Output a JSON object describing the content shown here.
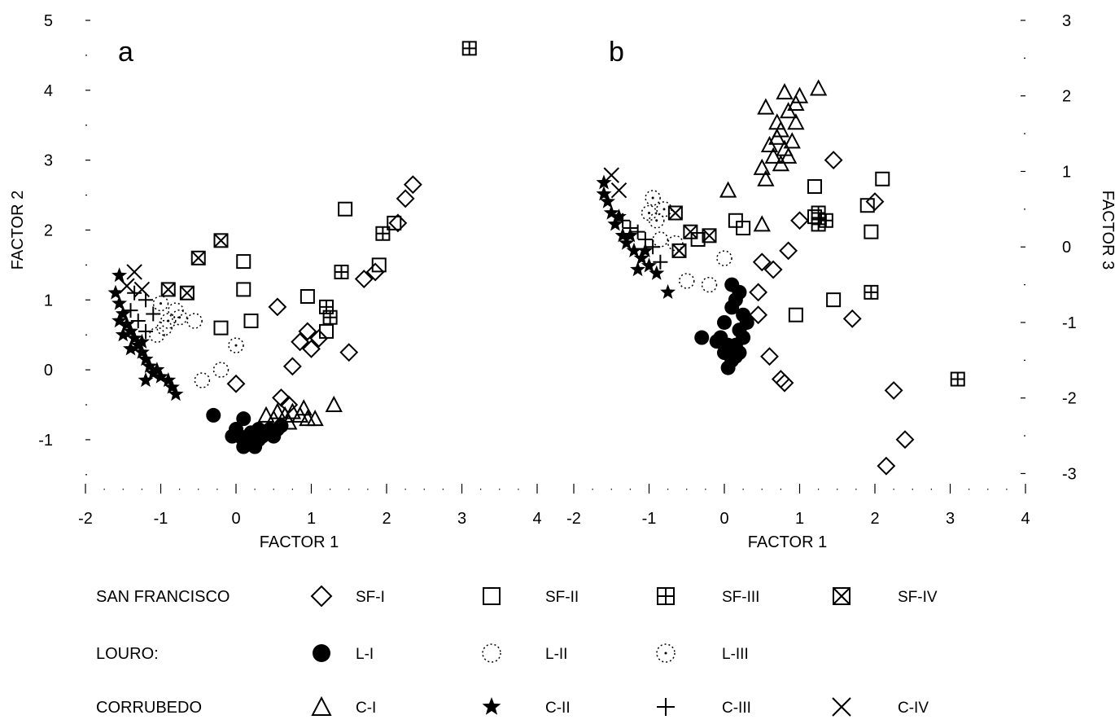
{
  "chart_data": [
    {
      "panel": "a",
      "type": "scatter",
      "xlabel": "FACTOR 1",
      "ylabel": "FACTOR 2",
      "xlim": [
        -2,
        4
      ],
      "ylim": [
        -1.7,
        5
      ],
      "xticks": [
        -2,
        -1,
        0,
        1,
        2,
        3,
        4
      ],
      "yticks": [
        -1,
        0,
        1,
        2,
        3,
        4,
        5
      ],
      "series": [
        {
          "name": "SF-I",
          "marker": "diamond",
          "points": [
            [
              0.55,
              0.9
            ],
            [
              0.85,
              0.4
            ],
            [
              0.95,
              0.55
            ],
            [
              1.0,
              0.3
            ],
            [
              1.1,
              0.45
            ],
            [
              1.5,
              0.25
            ],
            [
              1.7,
              1.3
            ],
            [
              1.85,
              1.4
            ],
            [
              2.15,
              2.1
            ],
            [
              2.25,
              2.45
            ],
            [
              2.35,
              2.65
            ],
            [
              0.6,
              -0.4
            ],
            [
              0.7,
              -0.5
            ],
            [
              0.0,
              -0.2
            ],
            [
              0.75,
              0.05
            ]
          ]
        },
        {
          "name": "SF-II",
          "marker": "square",
          "points": [
            [
              1.45,
              2.3
            ],
            [
              0.1,
              1.55
            ],
            [
              0.1,
              1.15
            ],
            [
              0.95,
              1.05
            ],
            [
              0.2,
              0.7
            ],
            [
              -0.2,
              0.6
            ],
            [
              1.2,
              0.55
            ],
            [
              1.9,
              1.5
            ],
            [
              2.1,
              2.1
            ]
          ]
        },
        {
          "name": "SF-III",
          "marker": "square-plus",
          "points": [
            [
              3.1,
              4.6
            ],
            [
              1.4,
              1.4
            ],
            [
              1.2,
              0.9
            ],
            [
              1.25,
              0.75
            ],
            [
              1.95,
              1.95
            ]
          ]
        },
        {
          "name": "SF-IV",
          "marker": "square-x",
          "points": [
            [
              -0.2,
              1.85
            ],
            [
              -0.5,
              1.6
            ],
            [
              -0.65,
              1.1
            ],
            [
              -0.9,
              1.15
            ]
          ]
        },
        {
          "name": "L-I",
          "marker": "filled-circle",
          "points": [
            [
              -0.3,
              -0.65
            ],
            [
              0.1,
              -0.7
            ],
            [
              0.0,
              -0.85
            ],
            [
              0.05,
              -0.95
            ],
            [
              0.15,
              -1.0
            ],
            [
              0.2,
              -1.05
            ],
            [
              0.25,
              -1.1
            ],
            [
              0.3,
              -1.0
            ],
            [
              0.35,
              -0.95
            ],
            [
              0.4,
              -0.9
            ],
            [
              0.45,
              -0.85
            ],
            [
              0.55,
              -0.85
            ],
            [
              0.6,
              -0.8
            ],
            [
              0.1,
              -1.1
            ],
            [
              0.2,
              -0.9
            ],
            [
              0.3,
              -0.85
            ],
            [
              0.5,
              -0.95
            ],
            [
              -0.05,
              -0.95
            ]
          ]
        },
        {
          "name": "L-II",
          "marker": "dotted-circle",
          "points": [
            [
              -0.55,
              0.7
            ],
            [
              -0.8,
              0.85
            ],
            [
              -0.95,
              0.6
            ],
            [
              -1.05,
              0.5
            ],
            [
              -0.45,
              -0.15
            ],
            [
              -0.2,
              0.0
            ]
          ]
        },
        {
          "name": "L-III",
          "marker": "dotted-circle-dot",
          "points": [
            [
              0.0,
              0.35
            ],
            [
              -0.75,
              0.75
            ],
            [
              -0.9,
              0.7
            ],
            [
              -1.0,
              0.95
            ]
          ]
        },
        {
          "name": "C-I",
          "marker": "triangle",
          "points": [
            [
              1.3,
              -0.5
            ],
            [
              0.55,
              -0.6
            ],
            [
              0.65,
              -0.65
            ],
            [
              0.75,
              -0.6
            ],
            [
              0.85,
              -0.65
            ],
            [
              0.95,
              -0.7
            ],
            [
              1.05,
              -0.7
            ],
            [
              0.7,
              -0.75
            ],
            [
              0.5,
              -0.7
            ],
            [
              0.4,
              -0.65
            ],
            [
              0.9,
              -0.55
            ]
          ]
        },
        {
          "name": "C-II",
          "marker": "star",
          "points": [
            [
              -1.55,
              1.35
            ],
            [
              -1.6,
              1.1
            ],
            [
              -1.55,
              0.95
            ],
            [
              -1.5,
              0.8
            ],
            [
              -1.45,
              0.65
            ],
            [
              -1.4,
              0.55
            ],
            [
              -1.35,
              0.45
            ],
            [
              -1.3,
              0.35
            ],
            [
              -1.25,
              0.25
            ],
            [
              -1.2,
              0.15
            ],
            [
              -1.15,
              0.05
            ],
            [
              -1.1,
              -0.05
            ],
            [
              -1.0,
              -0.1
            ],
            [
              -0.9,
              -0.15
            ],
            [
              -0.85,
              -0.25
            ],
            [
              -0.8,
              -0.35
            ],
            [
              -1.2,
              -0.15
            ],
            [
              -1.4,
              0.3
            ],
            [
              -1.5,
              0.5
            ],
            [
              -1.55,
              0.7
            ],
            [
              -1.25,
              0.4
            ],
            [
              -1.05,
              0.0
            ]
          ]
        },
        {
          "name": "C-III",
          "marker": "plus",
          "points": [
            [
              -1.35,
              1.1
            ],
            [
              -1.2,
              1.0
            ],
            [
              -1.4,
              0.85
            ],
            [
              -1.3,
              0.7
            ],
            [
              -1.1,
              0.8
            ],
            [
              -1.2,
              0.55
            ]
          ]
        },
        {
          "name": "C-IV",
          "marker": "x",
          "points": [
            [
              -1.35,
              1.4
            ],
            [
              -1.45,
              1.2
            ],
            [
              -1.25,
              1.15
            ]
          ]
        }
      ]
    },
    {
      "panel": "b",
      "type": "scatter",
      "xlabel": "FACTOR 1",
      "ylabel": "FACTOR 3",
      "xlim": [
        -2,
        4
      ],
      "ylim": [
        -3.2,
        3
      ],
      "xticks": [
        -2,
        -1,
        0,
        1,
        2,
        3,
        4
      ],
      "yticks": [
        -3,
        -2,
        -1,
        0,
        1,
        2,
        3
      ],
      "series": [
        {
          "name": "SF-I",
          "marker": "diamond",
          "points": [
            [
              1.45,
              1.15
            ],
            [
              2.0,
              0.6
            ],
            [
              1.0,
              0.35
            ],
            [
              0.85,
              -0.05
            ],
            [
              0.5,
              -0.2
            ],
            [
              0.45,
              -0.6
            ],
            [
              0.45,
              -0.9
            ],
            [
              1.7,
              -0.95
            ],
            [
              0.6,
              -1.45
            ],
            [
              0.75,
              -1.75
            ],
            [
              0.8,
              -1.8
            ],
            [
              2.25,
              -1.9
            ],
            [
              2.4,
              -2.55
            ],
            [
              2.15,
              -2.9
            ],
            [
              0.65,
              -0.3
            ]
          ]
        },
        {
          "name": "SF-II",
          "marker": "square",
          "points": [
            [
              2.1,
              0.9
            ],
            [
              1.2,
              0.8
            ],
            [
              1.9,
              0.55
            ],
            [
              0.15,
              0.35
            ],
            [
              0.25,
              0.25
            ],
            [
              1.95,
              0.2
            ],
            [
              0.95,
              -0.9
            ],
            [
              1.45,
              -0.7
            ],
            [
              -0.35,
              0.1
            ],
            [
              1.2,
              0.4
            ]
          ]
        },
        {
          "name": "SF-III",
          "marker": "square-plus",
          "points": [
            [
              3.1,
              -1.75
            ],
            [
              1.95,
              -0.6
            ],
            [
              1.25,
              0.45
            ],
            [
              1.35,
              0.35
            ],
            [
              1.25,
              0.3
            ]
          ]
        },
        {
          "name": "SF-IV",
          "marker": "square-x",
          "points": [
            [
              -0.65,
              0.45
            ],
            [
              -0.45,
              0.2
            ],
            [
              -0.2,
              0.15
            ],
            [
              -0.6,
              -0.05
            ]
          ]
        },
        {
          "name": "L-I",
          "marker": "filled-circle",
          "points": [
            [
              -0.3,
              -1.2
            ],
            [
              0.0,
              -1.4
            ],
            [
              0.05,
              -1.6
            ],
            [
              0.1,
              -1.5
            ],
            [
              0.15,
              -1.3
            ],
            [
              0.2,
              -1.1
            ],
            [
              0.25,
              -0.9
            ],
            [
              0.15,
              -0.7
            ],
            [
              0.1,
              -0.5
            ],
            [
              0.2,
              -0.6
            ],
            [
              0.0,
              -1.0
            ],
            [
              -0.05,
              -1.2
            ],
            [
              0.05,
              -1.3
            ],
            [
              0.1,
              -0.8
            ],
            [
              0.25,
              -1.2
            ],
            [
              0.15,
              -1.45
            ],
            [
              -0.1,
              -1.25
            ],
            [
              0.2,
              -1.4
            ],
            [
              0.3,
              -1.0
            ]
          ]
        },
        {
          "name": "L-II",
          "marker": "dotted-circle",
          "points": [
            [
              -0.85,
              0.1
            ],
            [
              -0.5,
              -0.45
            ],
            [
              -0.2,
              -0.5
            ],
            [
              0.0,
              -0.15
            ],
            [
              -0.65,
              0.05
            ]
          ]
        },
        {
          "name": "L-III",
          "marker": "dotted-circle-dot",
          "points": [
            [
              -0.8,
              0.5
            ],
            [
              -0.9,
              0.35
            ],
            [
              -0.95,
              0.65
            ],
            [
              -1.0,
              0.45
            ]
          ]
        },
        {
          "name": "C-I",
          "marker": "triangle",
          "points": [
            [
              1.25,
              2.1
            ],
            [
              1.0,
              2.0
            ],
            [
              0.8,
              2.05
            ],
            [
              0.55,
              1.85
            ],
            [
              0.85,
              1.8
            ],
            [
              0.95,
              1.65
            ],
            [
              0.75,
              1.55
            ],
            [
              0.7,
              1.45
            ],
            [
              0.6,
              1.35
            ],
            [
              0.8,
              1.3
            ],
            [
              0.9,
              1.4
            ],
            [
              0.65,
              1.2
            ],
            [
              0.5,
              1.05
            ],
            [
              0.55,
              0.9
            ],
            [
              0.75,
              1.1
            ],
            [
              0.85,
              1.2
            ],
            [
              0.05,
              0.75
            ],
            [
              0.5,
              0.3
            ],
            [
              0.95,
              1.9
            ],
            [
              0.7,
              1.65
            ]
          ]
        },
        {
          "name": "C-II",
          "marker": "star",
          "points": [
            [
              -1.6,
              0.85
            ],
            [
              -1.55,
              0.6
            ],
            [
              -1.5,
              0.45
            ],
            [
              -1.45,
              0.3
            ],
            [
              -1.35,
              0.15
            ],
            [
              -1.3,
              0.05
            ],
            [
              -1.2,
              -0.05
            ],
            [
              -1.1,
              -0.15
            ],
            [
              -1.0,
              -0.25
            ],
            [
              -0.9,
              -0.35
            ],
            [
              -0.75,
              -0.6
            ],
            [
              -1.25,
              0.15
            ],
            [
              -1.4,
              0.4
            ],
            [
              -1.6,
              0.7
            ],
            [
              -1.05,
              -0.05
            ],
            [
              -1.15,
              -0.3
            ]
          ]
        },
        {
          "name": "C-III",
          "marker": "plus",
          "points": [
            [
              -1.35,
              0.35
            ],
            [
              -1.25,
              0.25
            ],
            [
              -1.15,
              0.2
            ],
            [
              -1.05,
              0.1
            ],
            [
              -0.95,
              0.0
            ],
            [
              -0.85,
              -0.2
            ]
          ]
        },
        {
          "name": "C-IV",
          "marker": "x",
          "points": [
            [
              -1.5,
              0.95
            ],
            [
              -1.4,
              0.75
            ]
          ]
        }
      ]
    }
  ],
  "panels": {
    "a_label": "a",
    "b_label": "b"
  },
  "legend": {
    "groups": [
      {
        "label": "SAN FRANCISCO",
        "items": [
          {
            "marker": "diamond",
            "code": "SF-I"
          },
          {
            "marker": "square",
            "code": "SF-II"
          },
          {
            "marker": "square-plus",
            "code": "SF-III"
          },
          {
            "marker": "square-x",
            "code": "SF-IV"
          }
        ]
      },
      {
        "label": "LOURO:",
        "items": [
          {
            "marker": "filled-circle",
            "code": "L-I"
          },
          {
            "marker": "dotted-circle",
            "code": "L-II"
          },
          {
            "marker": "dotted-circle-dot",
            "code": "L-III"
          }
        ]
      },
      {
        "label": "CORRUBEDO",
        "items": [
          {
            "marker": "triangle",
            "code": "C-I"
          },
          {
            "marker": "star",
            "code": "C-II"
          },
          {
            "marker": "plus",
            "code": "C-III"
          },
          {
            "marker": "x",
            "code": "C-IV"
          }
        ]
      }
    ]
  },
  "colors": {
    "ink": "#000000",
    "background": "#ffffff"
  }
}
